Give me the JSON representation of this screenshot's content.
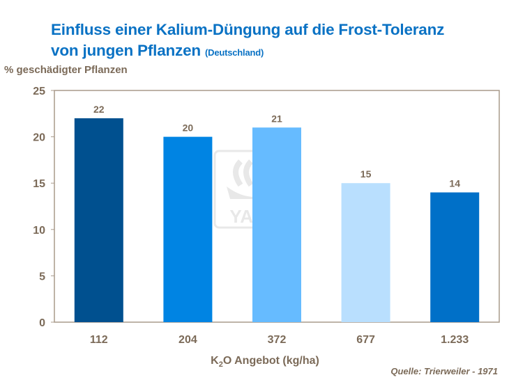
{
  "chart_data": {
    "type": "bar",
    "title": "Einfluss einer Kalium-Düngung auf die Frost-Toleranz von jungen Pflanzen",
    "title_line1": "Einfluss einer Kalium-Düngung auf die Frost-Toleranz",
    "title_line2": "von jungen Pflanzen",
    "subtitle": "(Deutschland)",
    "ylabel": "% geschädigter Pflanzen",
    "xlabel_prefix": "K",
    "xlabel_sub": "2",
    "xlabel_suffix": "O Angebot (kg/ha)",
    "source": "Quelle:  Trierweiler - 1971",
    "categories": [
      "112",
      "204",
      "372",
      "677",
      "1.233"
    ],
    "values": [
      22,
      20,
      21,
      15,
      14
    ],
    "bar_colors": [
      "#00508f",
      "#0084e3",
      "#66bbff",
      "#b9dffe",
      "#0070c8"
    ],
    "ylim": [
      0,
      25
    ],
    "yticks": [
      0,
      5,
      10,
      15,
      20,
      25
    ],
    "grid": false,
    "watermark": "YARA"
  }
}
